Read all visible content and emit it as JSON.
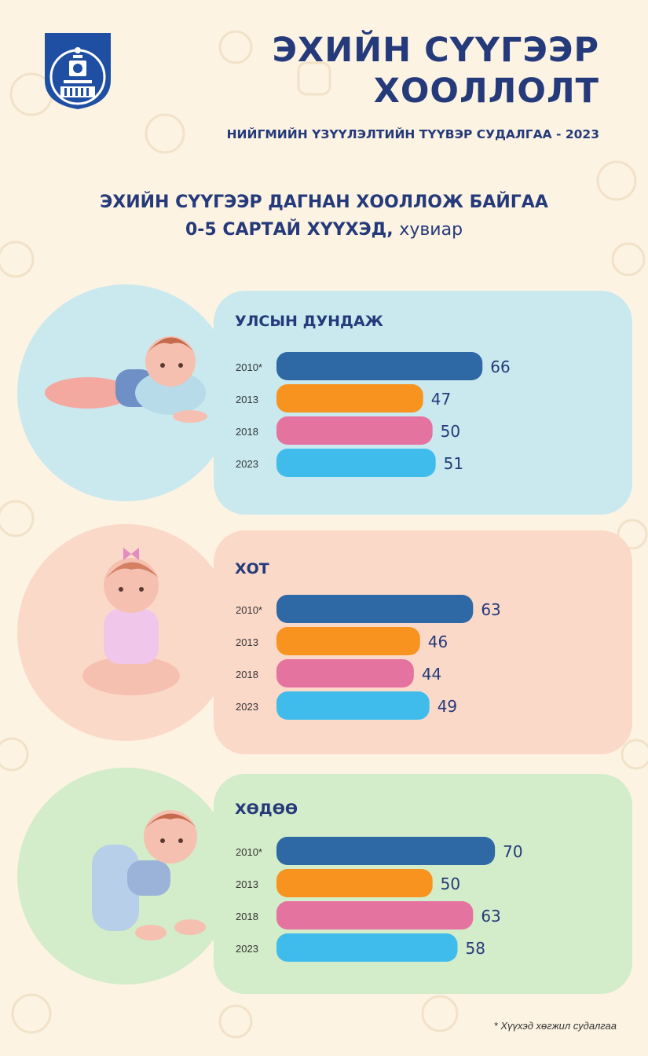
{
  "header": {
    "title_line1": "ЭХИЙН СҮҮГЭЭР",
    "title_line2": "ХООЛЛОЛТ",
    "subtitle": "НИЙГМИЙН ҮЗҮҮЛЭЛТИЙН ТҮҮВЭР СУДАЛГАА - 2023"
  },
  "heading": {
    "line1": "ЭХИЙН СҮҮГЭЭР ДАГНАН ХООЛЛОЖ БАЙГАА",
    "line2_bold": "0-5 САРТАЙ ХҮҮХЭД,",
    "line2_unit": "хувиар"
  },
  "colors": {
    "title": "#243a7a",
    "2010": "#2e68a5",
    "2013": "#f7931e",
    "2018": "#e4739f",
    "2023": "#3fbcec",
    "panel_national": "#c9e9ef",
    "panel_city": "#fbd9c9",
    "panel_rural": "#d3ecc9"
  },
  "footnote": "* Хүүхэд хөгжил судалгаа",
  "chart_data": [
    {
      "type": "bar",
      "title": "УЛСЫН ДУНДАЖ",
      "categories": [
        "2010*",
        "2013",
        "2018",
        "2023"
      ],
      "values": [
        66,
        47,
        50,
        51
      ],
      "xlim": [
        0,
        80
      ]
    },
    {
      "type": "bar",
      "title": "ХОТ",
      "categories": [
        "2010*",
        "2013",
        "2018",
        "2023"
      ],
      "values": [
        63,
        46,
        44,
        49
      ],
      "xlim": [
        0,
        80
      ]
    },
    {
      "type": "bar",
      "title": "ХӨДӨӨ",
      "categories": [
        "2010*",
        "2013",
        "2018",
        "2023"
      ],
      "values": [
        70,
        50,
        63,
        58
      ],
      "xlim": [
        0,
        80
      ]
    }
  ]
}
